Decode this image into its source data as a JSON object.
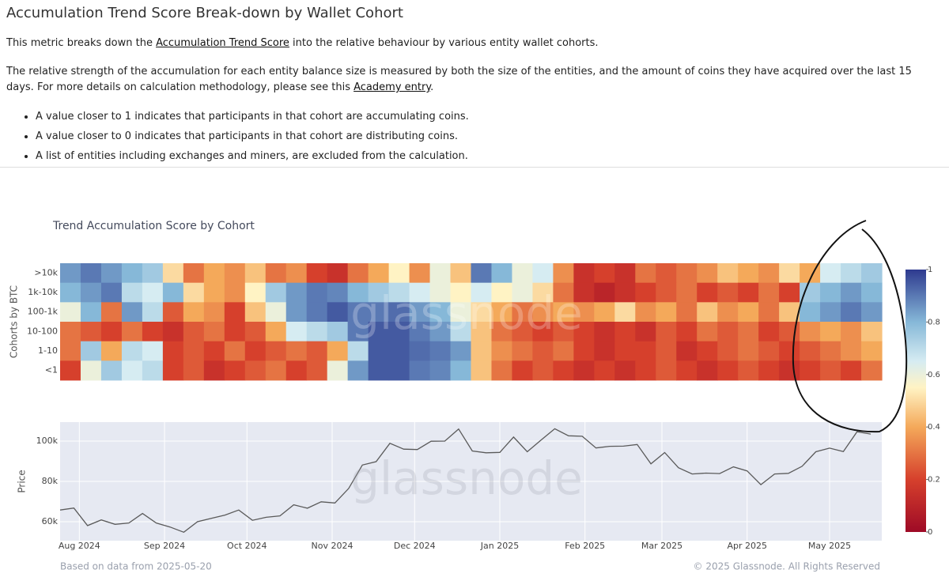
{
  "header": {
    "title": "Accumulation Trend Score Break-down by Wallet Cohort"
  },
  "intro": {
    "before": "This metric breaks down the ",
    "link": "Accumulation Trend Score",
    "after": " into the relative behaviour by various entity wallet cohorts."
  },
  "details": {
    "before": "The relative strength of the accumulation for each entity balance size is measured by both the size of the entities, and the amount of coins they have acquired over the last 15 days. For more details on calculation methodology, please see this ",
    "link": "Academy entry",
    "after": "."
  },
  "bullets": [
    "A value closer to 1 indicates that participants in that cohort are accumulating coins.",
    "A value closer to 0 indicates that participants in that cohort are distributing coins.",
    "A list of entities including exchanges and miners, are excluded from the calculation."
  ],
  "chart_data": [
    {
      "type": "heatmap",
      "title": "Trend Accumulation Score by Cohort",
      "y_label": "Cohorts by BTC",
      "watermark": "glassnode",
      "y": [
        ">10k",
        "1k-10k",
        "100-1k",
        "10-100",
        "1-10",
        "<1"
      ],
      "z": [
        [
          0.85,
          0.9,
          0.85,
          0.8,
          0.75,
          0.5,
          0.3,
          0.4,
          0.35,
          0.45,
          0.3,
          0.35,
          0.2,
          0.15,
          0.3,
          0.4,
          0.55,
          0.35,
          0.6,
          0.45,
          0.9,
          0.8,
          0.6,
          0.65,
          0.35,
          0.15,
          0.2,
          0.15,
          0.3,
          0.25,
          0.3,
          0.35,
          0.45,
          0.4,
          0.35,
          0.5,
          0.4,
          0.65,
          0.7,
          0.75
        ],
        [
          0.8,
          0.85,
          0.9,
          0.7,
          0.65,
          0.8,
          0.5,
          0.4,
          0.35,
          0.55,
          0.75,
          0.85,
          0.9,
          0.88,
          0.8,
          0.75,
          0.7,
          0.65,
          0.6,
          0.55,
          0.65,
          0.55,
          0.6,
          0.5,
          0.3,
          0.15,
          0.1,
          0.15,
          0.2,
          0.25,
          0.3,
          0.2,
          0.25,
          0.2,
          0.3,
          0.2,
          0.75,
          0.8,
          0.85,
          0.8
        ],
        [
          0.6,
          0.8,
          0.3,
          0.85,
          0.7,
          0.25,
          0.4,
          0.35,
          0.2,
          0.45,
          0.6,
          0.85,
          0.9,
          0.95,
          0.9,
          0.9,
          0.92,
          0.85,
          0.8,
          0.6,
          0.5,
          0.4,
          0.3,
          0.35,
          0.4,
          0.35,
          0.4,
          0.5,
          0.35,
          0.4,
          0.3,
          0.45,
          0.35,
          0.4,
          0.3,
          0.45,
          0.8,
          0.85,
          0.9,
          0.85
        ],
        [
          0.3,
          0.25,
          0.2,
          0.3,
          0.2,
          0.15,
          0.25,
          0.3,
          0.2,
          0.25,
          0.4,
          0.65,
          0.7,
          0.75,
          0.9,
          0.95,
          0.95,
          0.9,
          0.85,
          0.7,
          0.45,
          0.3,
          0.25,
          0.2,
          0.25,
          0.2,
          0.15,
          0.2,
          0.15,
          0.25,
          0.2,
          0.3,
          0.25,
          0.3,
          0.2,
          0.25,
          0.35,
          0.4,
          0.35,
          0.45
        ],
        [
          0.3,
          0.75,
          0.4,
          0.7,
          0.65,
          0.2,
          0.25,
          0.2,
          0.3,
          0.2,
          0.25,
          0.3,
          0.25,
          0.4,
          0.7,
          0.95,
          0.95,
          0.92,
          0.9,
          0.85,
          0.45,
          0.35,
          0.3,
          0.25,
          0.3,
          0.2,
          0.15,
          0.2,
          0.2,
          0.25,
          0.15,
          0.2,
          0.25,
          0.3,
          0.25,
          0.2,
          0.25,
          0.3,
          0.35,
          0.4
        ],
        [
          0.2,
          0.6,
          0.75,
          0.65,
          0.7,
          0.2,
          0.25,
          0.15,
          0.2,
          0.25,
          0.3,
          0.2,
          0.25,
          0.6,
          0.85,
          0.95,
          0.95,
          0.9,
          0.88,
          0.8,
          0.45,
          0.3,
          0.2,
          0.25,
          0.2,
          0.15,
          0.2,
          0.15,
          0.2,
          0.25,
          0.2,
          0.15,
          0.2,
          0.25,
          0.2,
          0.15,
          0.2,
          0.25,
          0.2,
          0.3
        ]
      ],
      "zlim": [
        0,
        1
      ],
      "zticks": [
        0,
        0.2,
        0.4,
        0.6,
        0.8,
        1
      ],
      "colorscale": [
        [
          0,
          "#9e0a26"
        ],
        [
          0.2,
          "#d6402c"
        ],
        [
          0.4,
          "#f4a95a"
        ],
        [
          0.55,
          "#fff3c4"
        ],
        [
          0.65,
          "#d6ecf2"
        ],
        [
          0.8,
          "#86b8d8"
        ],
        [
          1,
          "#2e3a8f"
        ]
      ]
    },
    {
      "type": "line",
      "y_label": "Price",
      "watermark": "glassnode",
      "color": "#5a5a5a",
      "values": [
        65800,
        66800,
        58100,
        60900,
        58700,
        59400,
        64100,
        59400,
        57400,
        54800,
        60000,
        61700,
        63300,
        65800,
        60700,
        62200,
        62900,
        68400,
        66700,
        69900,
        69300,
        76500,
        88100,
        89800,
        98900,
        96000,
        95800,
        99900,
        100000,
        106000,
        95100,
        94200,
        94400,
        102000,
        94700,
        100500,
        106100,
        102600,
        102400,
        96600,
        97400,
        97500,
        98300,
        88700,
        94300,
        86800,
        83700,
        84100,
        83900,
        87200,
        85200,
        78400,
        83700,
        84000,
        87500,
        94700,
        96500,
        94800,
        104600,
        103500
      ],
      "xlim": [
        0,
        59.8
      ],
      "xticks": [
        {
          "value": 1.4,
          "label": "Aug 2024"
        },
        {
          "value": 7.6,
          "label": "Sep 2024"
        },
        {
          "value": 13.6,
          "label": "Oct 2024"
        },
        {
          "value": 19.8,
          "label": "Nov 2024"
        },
        {
          "value": 25.8,
          "label": "Dec 2024"
        },
        {
          "value": 32,
          "label": "Jan 2025"
        },
        {
          "value": 38.2,
          "label": "Feb 2025"
        },
        {
          "value": 43.8,
          "label": "Mar 2025"
        },
        {
          "value": 50,
          "label": "Apr 2025"
        },
        {
          "value": 56,
          "label": "May 2025"
        }
      ],
      "ylim": [
        50600,
        109400
      ],
      "yticks": [
        {
          "value": 60000,
          "label": "60k"
        },
        {
          "value": 80000,
          "label": "80k"
        },
        {
          "value": 100000,
          "label": "100k"
        }
      ],
      "grid": true
    }
  ],
  "footer": {
    "source": "Based on data from 2025-05-20",
    "copyright": "© 2025 Glassnode. All Rights Reserved"
  }
}
